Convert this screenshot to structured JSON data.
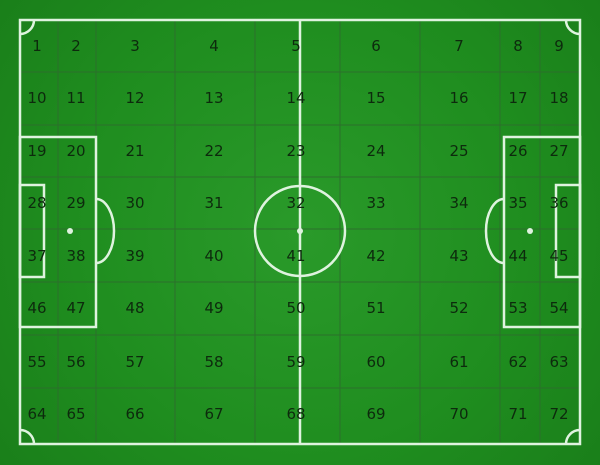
{
  "pitch": {
    "colors": {
      "grass": "#1f8d1f",
      "lines": "#dff3df",
      "grid": "#2c6f2c",
      "labels": "#0d2a0d"
    },
    "zones": {
      "rows": 8,
      "cols": 9,
      "labels": [
        "1",
        "2",
        "3",
        "4",
        "5",
        "6",
        "7",
        "8",
        "9",
        "10",
        "11",
        "12",
        "13",
        "14",
        "15",
        "16",
        "17",
        "18",
        "19",
        "20",
        "21",
        "22",
        "23",
        "24",
        "25",
        "26",
        "27",
        "28",
        "29",
        "30",
        "31",
        "32",
        "33",
        "34",
        "35",
        "36",
        "37",
        "38",
        "39",
        "40",
        "41",
        "42",
        "43",
        "44",
        "45",
        "46",
        "47",
        "48",
        "49",
        "50",
        "51",
        "52",
        "53",
        "54",
        "55",
        "56",
        "57",
        "58",
        "59",
        "60",
        "61",
        "62",
        "63",
        "64",
        "65",
        "66",
        "67",
        "68",
        "69",
        "70",
        "71",
        "72"
      ]
    }
  }
}
